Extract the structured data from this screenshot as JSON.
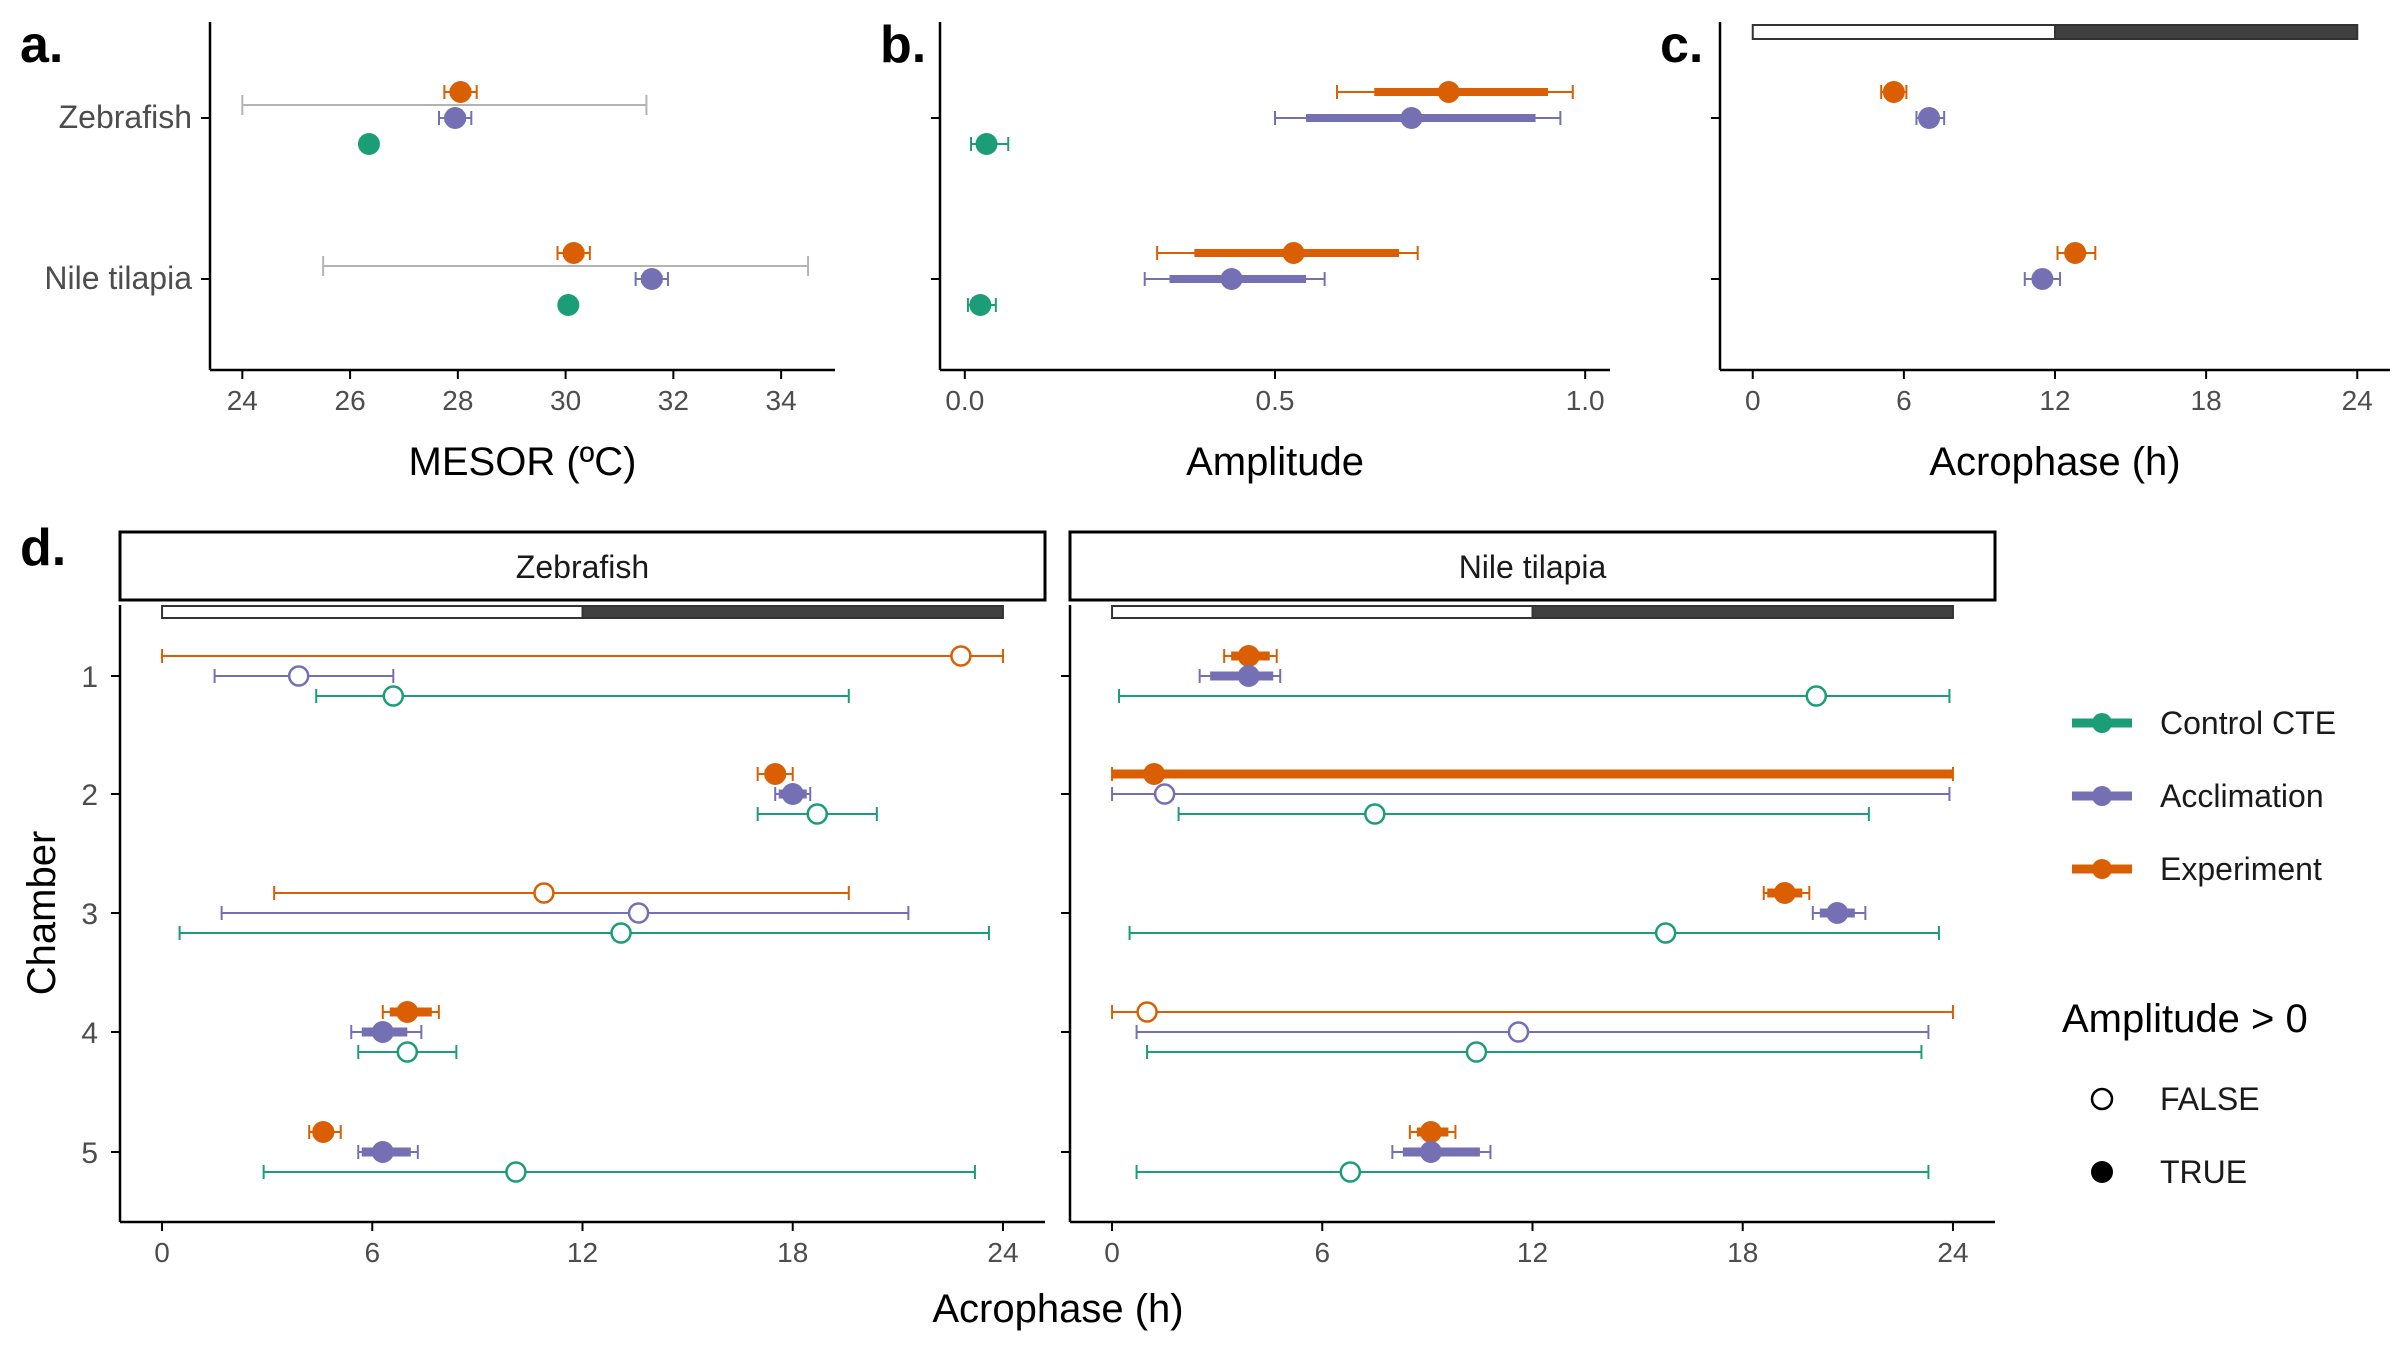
{
  "colors": {
    "control": "#1b9e77",
    "acclimation": "#7570b3",
    "experiment": "#d95f02",
    "range": "#b3b3b3",
    "axis": "#000000",
    "tick_text": "#4d4d4d",
    "photoperiod_dark": "#404040",
    "photoperiod_light": "#ffffff"
  },
  "panel_letters": {
    "a": "a.",
    "b": "b.",
    "c": "c.",
    "d": "d."
  },
  "species": [
    "Zebrafish",
    "Nile tilapia"
  ],
  "legend": {
    "color_items": [
      "Control CTE",
      "Acclimation",
      "Experiment"
    ],
    "shape_title": "Amplitude > 0",
    "shape_items": [
      "FALSE",
      "TRUE"
    ]
  },
  "chart_data": [
    {
      "panel": "a",
      "type": "scatter",
      "xlabel": "MESOR (ºC)",
      "ylabel": "",
      "xlim": [
        23.4,
        35.0
      ],
      "xticks": [
        24,
        26,
        28,
        30,
        32,
        34
      ],
      "categories": [
        "Zebrafish",
        "Nile tilapia"
      ],
      "reference_range": [
        {
          "category": "Zebrafish",
          "low": 24.0,
          "high": 31.5
        },
        {
          "category": "Nile tilapia",
          "low": 25.5,
          "high": 34.5
        }
      ],
      "series": [
        {
          "name": "Experiment",
          "points": [
            {
              "category": "Zebrafish",
              "value": 28.05,
              "ci": [
                27.75,
                28.35
              ],
              "ci_inner": [
                27.85,
                28.25
              ]
            },
            {
              "category": "Nile tilapia",
              "value": 30.15,
              "ci": [
                29.85,
                30.45
              ],
              "ci_inner": [
                29.95,
                30.35
              ]
            }
          ]
        },
        {
          "name": "Acclimation",
          "points": [
            {
              "category": "Zebrafish",
              "value": 27.95,
              "ci": [
                27.65,
                28.25
              ],
              "ci_inner": [
                27.75,
                28.15
              ]
            },
            {
              "category": "Nile tilapia",
              "value": 31.6,
              "ci": [
                31.3,
                31.9
              ],
              "ci_inner": [
                31.4,
                31.8
              ]
            }
          ]
        },
        {
          "name": "Control CTE",
          "points": [
            {
              "category": "Zebrafish",
              "value": 26.35,
              "ci": [
                26.3,
                26.4
              ],
              "ci_inner": [
                26.32,
                26.38
              ]
            },
            {
              "category": "Nile tilapia",
              "value": 30.05,
              "ci": [
                30.0,
                30.1
              ],
              "ci_inner": [
                30.02,
                30.08
              ]
            }
          ]
        }
      ]
    },
    {
      "panel": "b",
      "type": "scatter",
      "xlabel": "Amplitude",
      "ylabel": "",
      "xlim": [
        -0.04,
        1.04
      ],
      "xticks": [
        0.0,
        0.5,
        1.0
      ],
      "xtick_labels": [
        "0.0",
        "0.5",
        "1.0"
      ],
      "categories": [
        "Zebrafish",
        "Nile tilapia"
      ],
      "series": [
        {
          "name": "Experiment",
          "points": [
            {
              "category": "Zebrafish",
              "value": 0.78,
              "ci": [
                0.6,
                0.98
              ],
              "ci_inner": [
                0.66,
                0.94
              ]
            },
            {
              "category": "Nile tilapia",
              "value": 0.53,
              "ci": [
                0.31,
                0.73
              ],
              "ci_inner": [
                0.37,
                0.7
              ]
            }
          ]
        },
        {
          "name": "Acclimation",
          "points": [
            {
              "category": "Zebrafish",
              "value": 0.72,
              "ci": [
                0.5,
                0.96
              ],
              "ci_inner": [
                0.55,
                0.92
              ]
            },
            {
              "category": "Nile tilapia",
              "value": 0.43,
              "ci": [
                0.29,
                0.58
              ],
              "ci_inner": [
                0.33,
                0.55
              ]
            }
          ]
        },
        {
          "name": "Control CTE",
          "points": [
            {
              "category": "Zebrafish",
              "value": 0.035,
              "ci": [
                0.01,
                0.07
              ],
              "ci_inner": [
                0.02,
                0.05
              ]
            },
            {
              "category": "Nile tilapia",
              "value": 0.025,
              "ci": [
                0.005,
                0.05
              ],
              "ci_inner": [
                0.015,
                0.035
              ]
            }
          ]
        }
      ]
    },
    {
      "panel": "c",
      "type": "scatter",
      "xlabel": "Acrophase (h)",
      "ylabel": "",
      "xlim": [
        -1.3,
        25.3
      ],
      "xticks": [
        0,
        6,
        12,
        18,
        24
      ],
      "photoperiod": {
        "light": [
          0,
          12
        ],
        "dark": [
          12,
          24
        ]
      },
      "categories": [
        "Zebrafish",
        "Nile tilapia"
      ],
      "series": [
        {
          "name": "Experiment",
          "points": [
            {
              "category": "Zebrafish",
              "value": 5.6,
              "ci": [
                5.1,
                6.1
              ],
              "ci_inner": [
                5.3,
                5.9
              ]
            },
            {
              "category": "Nile tilapia",
              "value": 12.8,
              "ci": [
                12.1,
                13.6
              ],
              "ci_inner": [
                12.4,
                13.2
              ]
            }
          ]
        },
        {
          "name": "Acclimation",
          "points": [
            {
              "category": "Zebrafish",
              "value": 7.0,
              "ci": [
                6.5,
                7.6
              ],
              "ci_inner": [
                6.7,
                7.3
              ]
            },
            {
              "category": "Nile tilapia",
              "value": 11.5,
              "ci": [
                10.8,
                12.2
              ],
              "ci_inner": [
                11.1,
                11.9
              ]
            }
          ]
        }
      ]
    },
    {
      "panel": "d",
      "type": "scatter",
      "xlabel": "Acrophase (h)",
      "ylabel": "Chamber",
      "xlim": [
        -1.2,
        25.2
      ],
      "xticks": [
        0,
        6,
        12,
        18,
        24
      ],
      "photoperiod": {
        "light": [
          0,
          12
        ],
        "dark": [
          12,
          24
        ]
      },
      "chambers": [
        "1",
        "2",
        "3",
        "4",
        "5"
      ],
      "facets": [
        {
          "title": "Zebrafish",
          "series": [
            {
              "name": "Experiment",
              "points": [
                {
                  "chamber": "1",
                  "value": 22.8,
                  "ci": [
                    0.0,
                    24.0
                  ],
                  "amp": false
                },
                {
                  "chamber": "2",
                  "value": 17.5,
                  "ci": [
                    17.0,
                    18.0
                  ],
                  "ci_inner": [
                    17.2,
                    17.8
                  ],
                  "amp": true
                },
                {
                  "chamber": "3",
                  "value": 10.9,
                  "ci": [
                    3.2,
                    19.6
                  ],
                  "amp": false
                },
                {
                  "chamber": "4",
                  "value": 7.0,
                  "ci": [
                    6.3,
                    7.9
                  ],
                  "ci_inner": [
                    6.5,
                    7.7
                  ],
                  "amp": true
                },
                {
                  "chamber": "5",
                  "value": 4.6,
                  "ci": [
                    4.2,
                    5.1
                  ],
                  "ci_inner": [
                    4.3,
                    4.9
                  ],
                  "amp": true
                }
              ]
            },
            {
              "name": "Acclimation",
              "points": [
                {
                  "chamber": "1",
                  "value": 3.9,
                  "ci": [
                    1.5,
                    6.6
                  ],
                  "amp": false
                },
                {
                  "chamber": "2",
                  "value": 18.0,
                  "ci": [
                    17.5,
                    18.5
                  ],
                  "ci_inner": [
                    17.6,
                    18.4
                  ],
                  "amp": true
                },
                {
                  "chamber": "3",
                  "value": 13.6,
                  "ci": [
                    1.7,
                    21.3
                  ],
                  "amp": false
                },
                {
                  "chamber": "4",
                  "value": 6.3,
                  "ci": [
                    5.4,
                    7.4
                  ],
                  "ci_inner": [
                    5.7,
                    7.0
                  ],
                  "amp": true
                },
                {
                  "chamber": "5",
                  "value": 6.3,
                  "ci": [
                    5.6,
                    7.3
                  ],
                  "ci_inner": [
                    5.7,
                    7.1
                  ],
                  "amp": true
                }
              ]
            },
            {
              "name": "Control CTE",
              "points": [
                {
                  "chamber": "1",
                  "value": 6.6,
                  "ci": [
                    4.4,
                    19.6
                  ],
                  "amp": false
                },
                {
                  "chamber": "2",
                  "value": 18.7,
                  "ci": [
                    17.0,
                    20.4
                  ],
                  "amp": false
                },
                {
                  "chamber": "3",
                  "value": 13.1,
                  "ci": [
                    0.5,
                    23.6
                  ],
                  "amp": false
                },
                {
                  "chamber": "4",
                  "value": 7.0,
                  "ci": [
                    5.6,
                    8.4
                  ],
                  "amp": false
                },
                {
                  "chamber": "5",
                  "value": 10.1,
                  "ci": [
                    2.9,
                    23.2
                  ],
                  "amp": false
                }
              ]
            }
          ]
        },
        {
          "title": "Nile tilapia",
          "series": [
            {
              "name": "Experiment",
              "points": [
                {
                  "chamber": "1",
                  "value": 3.9,
                  "ci": [
                    3.2,
                    4.7
                  ],
                  "ci_inner": [
                    3.4,
                    4.5
                  ],
                  "amp": true
                },
                {
                  "chamber": "2",
                  "value": 1.2,
                  "ci": [
                    0.0,
                    24.0
                  ],
                  "ci_inner": [
                    0.0,
                    24.0
                  ],
                  "amp": true
                },
                {
                  "chamber": "3",
                  "value": 19.2,
                  "ci": [
                    18.6,
                    19.9
                  ],
                  "ci_inner": [
                    18.7,
                    19.7
                  ],
                  "amp": true
                },
                {
                  "chamber": "4",
                  "value": 1.0,
                  "ci": [
                    0.0,
                    24.0
                  ],
                  "amp": false
                },
                {
                  "chamber": "5",
                  "value": 9.1,
                  "ci": [
                    8.5,
                    9.8
                  ],
                  "ci_inner": [
                    8.7,
                    9.6
                  ],
                  "amp": true
                }
              ]
            },
            {
              "name": "Acclimation",
              "points": [
                {
                  "chamber": "1",
                  "value": 3.9,
                  "ci": [
                    2.5,
                    4.8
                  ],
                  "ci_inner": [
                    2.8,
                    4.6
                  ],
                  "amp": true
                },
                {
                  "chamber": "2",
                  "value": 1.5,
                  "ci": [
                    0.0,
                    23.9
                  ],
                  "amp": false
                },
                {
                  "chamber": "3",
                  "value": 20.7,
                  "ci": [
                    20.0,
                    21.5
                  ],
                  "ci_inner": [
                    20.2,
                    21.2
                  ],
                  "amp": true
                },
                {
                  "chamber": "4",
                  "value": 11.6,
                  "ci": [
                    0.7,
                    23.3
                  ],
                  "amp": false
                },
                {
                  "chamber": "5",
                  "value": 9.1,
                  "ci": [
                    8.0,
                    10.8
                  ],
                  "ci_inner": [
                    8.3,
                    10.5
                  ],
                  "amp": true
                }
              ]
            },
            {
              "name": "Control CTE",
              "points": [
                {
                  "chamber": "1",
                  "value": 20.1,
                  "ci": [
                    0.2,
                    23.9
                  ],
                  "amp": false
                },
                {
                  "chamber": "2",
                  "value": 7.5,
                  "ci": [
                    1.9,
                    21.6
                  ],
                  "amp": false
                },
                {
                  "chamber": "3",
                  "value": 15.8,
                  "ci": [
                    0.5,
                    23.6
                  ],
                  "amp": false
                },
                {
                  "chamber": "4",
                  "value": 10.4,
                  "ci": [
                    1.0,
                    23.1
                  ],
                  "amp": false
                },
                {
                  "chamber": "5",
                  "value": 6.8,
                  "ci": [
                    0.7,
                    23.3
                  ],
                  "amp": false
                }
              ]
            }
          ]
        }
      ]
    }
  ]
}
